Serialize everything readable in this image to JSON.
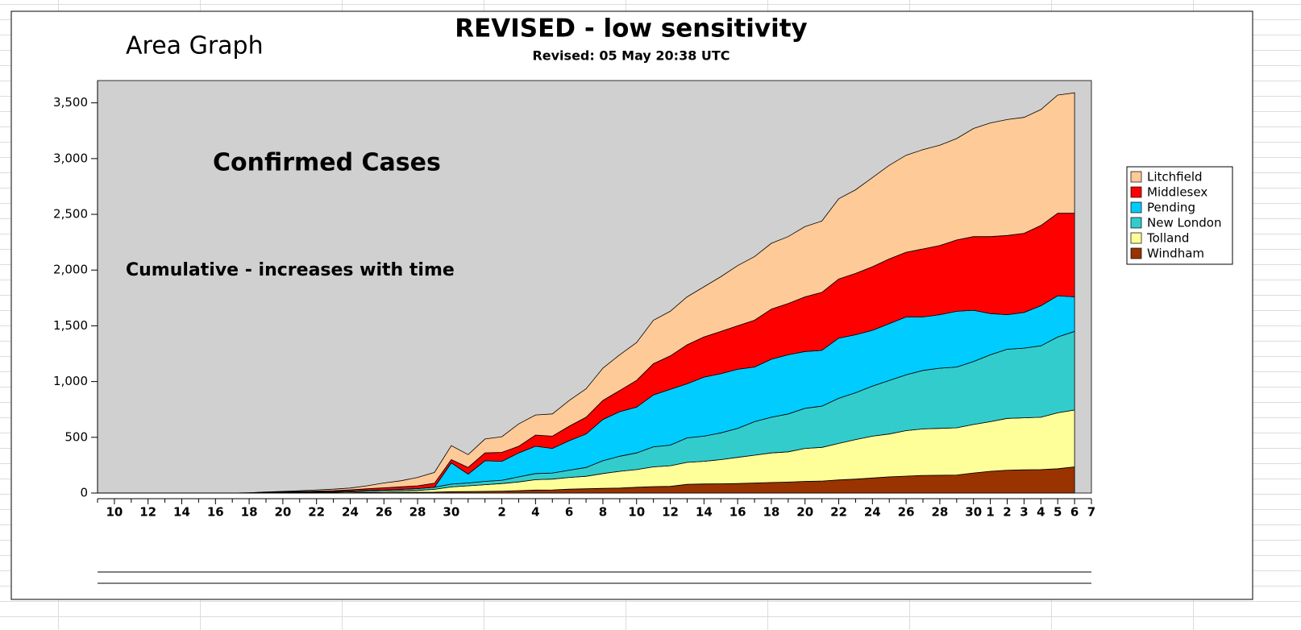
{
  "chart_data": {
    "type": "stacked_area",
    "title": "REVISED - low sensitivity",
    "subtitle": "Revised: 05 May 20:38 UTC",
    "annotations": [
      "Area Graph",
      "Confirmed Cases",
      "Cumulative - increases with time"
    ],
    "categories": [
      null,
      "10",
      null,
      "12",
      null,
      "14",
      null,
      "16",
      null,
      "18",
      null,
      "20",
      null,
      "22",
      null,
      "24",
      null,
      "26",
      null,
      "28",
      null,
      "30",
      null,
      null,
      "2",
      null,
      "4",
      null,
      "6",
      null,
      "8",
      null,
      "10",
      null,
      "12",
      null,
      "14",
      null,
      "16",
      null,
      "18",
      null,
      "20",
      null,
      "22",
      null,
      "24",
      null,
      "26",
      null,
      "28",
      null,
      "30",
      "1",
      "2",
      "3",
      "4",
      "5",
      "6",
      "7"
    ],
    "series": [
      {
        "name": "Windham",
        "color": "#993300",
        "values": [
          0,
          0,
          0,
          0,
          0,
          0,
          0,
          0,
          0,
          0,
          1,
          1,
          1,
          2,
          2,
          3,
          4,
          5,
          6,
          7,
          8,
          12,
          13,
          15,
          17,
          22,
          27,
          28,
          35,
          38,
          42,
          45,
          52,
          58,
          60,
          78,
          82,
          83,
          85,
          90,
          95,
          98,
          105,
          108,
          118,
          125,
          135,
          145,
          152,
          158,
          160,
          162,
          180,
          195,
          205,
          208,
          210,
          218,
          235,
          null
        ]
      },
      {
        "name": "Tolland",
        "color": "#ffff99",
        "values": [
          0,
          0,
          0,
          0,
          0,
          0,
          0,
          0,
          0,
          1,
          2,
          3,
          4,
          5,
          6,
          8,
          10,
          12,
          14,
          17,
          25,
          43,
          52,
          60,
          68,
          78,
          93,
          97,
          105,
          112,
          133,
          150,
          158,
          177,
          185,
          197,
          203,
          217,
          235,
          250,
          265,
          272,
          295,
          302,
          327,
          355,
          375,
          385,
          408,
          417,
          420,
          423,
          435,
          445,
          465,
          467,
          470,
          502,
          510,
          null
        ]
      },
      {
        "name": "New London",
        "color": "#33cccc",
        "values": [
          0,
          0,
          0,
          0,
          0,
          0,
          0,
          0,
          0,
          0,
          2,
          3,
          4,
          5,
          6,
          8,
          10,
          12,
          14,
          16,
          20,
          25,
          25,
          30,
          30,
          45,
          55,
          55,
          65,
          80,
          115,
          135,
          150,
          180,
          185,
          220,
          225,
          240,
          260,
          300,
          320,
          340,
          360,
          370,
          405,
          420,
          450,
          480,
          500,
          525,
          540,
          545,
          565,
          600,
          620,
          625,
          640,
          680,
          705,
          null
        ]
      },
      {
        "name": "Pending",
        "color": "#00ccff",
        "values": [
          0,
          0,
          0,
          0,
          0,
          0,
          0,
          0,
          0,
          0,
          0,
          0,
          0,
          0,
          0,
          0,
          0,
          0,
          0,
          0,
          0,
          190,
          80,
          185,
          170,
          215,
          245,
          220,
          265,
          300,
          370,
          400,
          410,
          465,
          500,
          485,
          530,
          530,
          530,
          490,
          520,
          530,
          510,
          500,
          540,
          520,
          500,
          510,
          520,
          480,
          480,
          500,
          460,
          370,
          310,
          320,
          360,
          370,
          310,
          null
        ]
      },
      {
        "name": "Middlesex",
        "color": "#ff0000",
        "values": [
          0,
          0,
          0,
          0,
          0,
          0,
          0,
          0,
          0,
          1,
          2,
          3,
          4,
          6,
          8,
          10,
          14,
          18,
          22,
          25,
          35,
          30,
          60,
          70,
          80,
          60,
          100,
          110,
          130,
          150,
          170,
          190,
          240,
          280,
          300,
          350,
          360,
          380,
          390,
          420,
          450,
          460,
          490,
          520,
          530,
          550,
          570,
          580,
          580,
          610,
          620,
          640,
          660,
          690,
          710,
          710,
          720,
          740,
          750,
          null
        ]
      },
      {
        "name": "Litchfield",
        "color": "#fdca98",
        "values": [
          0,
          0,
          0,
          0,
          0,
          0,
          0,
          0,
          0,
          1,
          3,
          5,
          7,
          10,
          13,
          16,
          27,
          43,
          54,
          75,
          97,
          125,
          115,
          125,
          140,
          200,
          180,
          200,
          230,
          255,
          290,
          320,
          340,
          390,
          400,
          430,
          450,
          490,
          540,
          570,
          590,
          600,
          630,
          640,
          720,
          750,
          800,
          840,
          870,
          890,
          900,
          910,
          970,
          1020,
          1040,
          1040,
          1040,
          1060,
          1080,
          null
        ]
      }
    ],
    "ylim": [
      0,
      3700
    ],
    "yticks": [
      0,
      500,
      {
        "value": 1000,
        "label": "1,000"
      },
      {
        "value": 1500,
        "label": "1,500"
      },
      {
        "value": 2000,
        "label": "2,000"
      },
      {
        "value": 2500,
        "label": "2,500"
      },
      {
        "value": 3000,
        "label": "3,000"
      },
      {
        "value": 3500,
        "label": "3,500"
      }
    ],
    "legend": "right",
    "plot_background": "#d0d0d0"
  }
}
